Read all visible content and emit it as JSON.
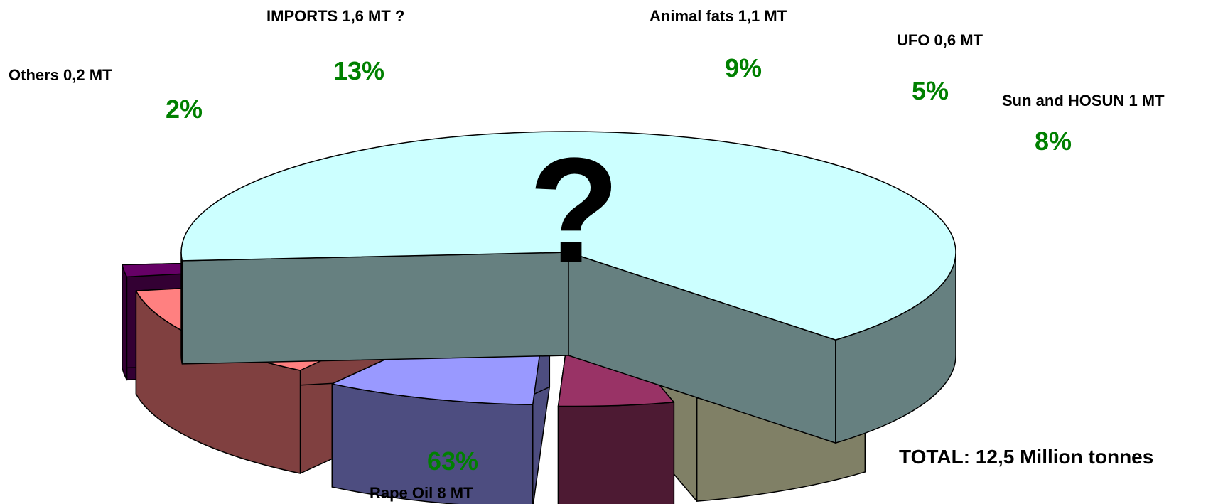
{
  "chart_data": {
    "type": "pie",
    "style": "3d-exploded",
    "slices": [
      {
        "name": "Rape Oil",
        "label": "Rape Oil  8 MT",
        "value": 8,
        "percent": 63,
        "percent_label": "63%",
        "top_color": "#CCFFFF",
        "side_color": "#668080"
      },
      {
        "name": "Sun and HOSUN",
        "label": "Sun and HOSUN  1 MT",
        "value": 1,
        "percent": 8,
        "percent_label": "8%",
        "top_color": "#FFFFCC",
        "side_color": "#808066"
      },
      {
        "name": "UFO",
        "label": "UFO  0,6 MT",
        "value": 0.6,
        "percent": 5,
        "percent_label": "5%",
        "top_color": "#993366",
        "side_color": "#4D1A33"
      },
      {
        "name": "Animal fats",
        "label": "Animal fats  1,1 MT",
        "value": 1.1,
        "percent": 9,
        "percent_label": "9%",
        "top_color": "#9999FF",
        "side_color": "#4D4D80"
      },
      {
        "name": "IMPORTS",
        "label": "IMPORTS 1,6 MT ?",
        "value": 1.6,
        "percent": 13,
        "percent_label": "13%",
        "top_color": "#FF8080",
        "side_color": "#804040"
      },
      {
        "name": "Others",
        "label": "Others  0,2 MT",
        "value": 0.2,
        "percent": 2,
        "percent_label": "2%",
        "top_color": "#660066",
        "side_color": "#330033"
      }
    ],
    "percent_label_color": "#008000",
    "center_mark": "?",
    "total_label": "TOTAL: 12,5 Million tonnes"
  }
}
